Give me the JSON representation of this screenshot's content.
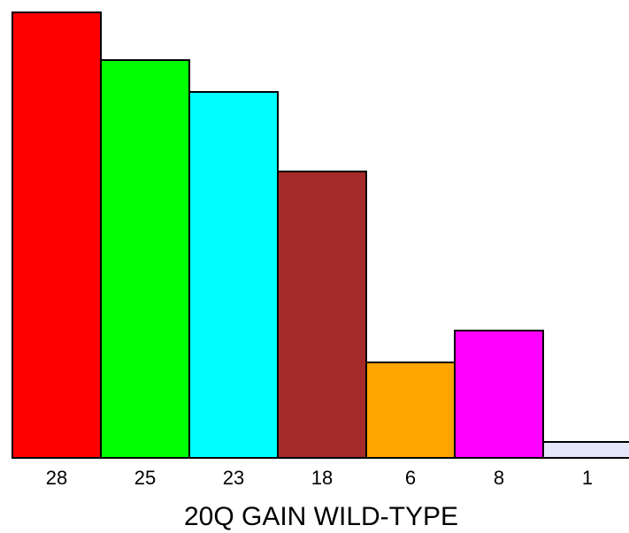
{
  "chart_data": {
    "type": "bar",
    "categories": [
      "28",
      "25",
      "23",
      "18",
      "6",
      "8",
      "1"
    ],
    "values": [
      28,
      25,
      23,
      18,
      6,
      8,
      1
    ],
    "colors": [
      "#ff0000",
      "#00ff00",
      "#00ffff",
      "#a52a2a",
      "#ffa500",
      "#ff00ff",
      "#e6e6fa"
    ],
    "xlabel": "20Q GAIN WILD-TYPE",
    "ylabel": "",
    "ylim": [
      0,
      28
    ],
    "grid": false,
    "legend": "none"
  }
}
